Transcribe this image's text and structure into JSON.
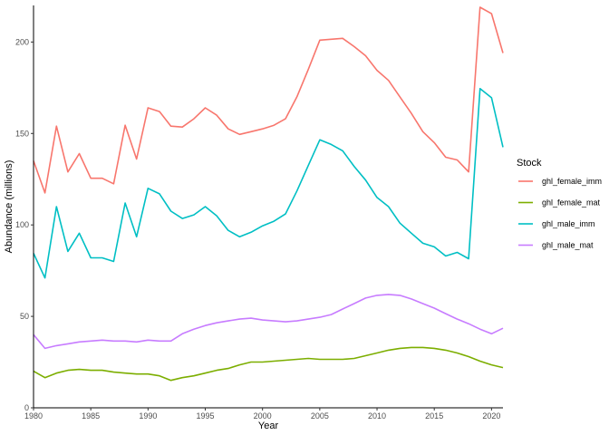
{
  "chart_data": {
    "type": "line",
    "title": "",
    "xlabel": "Year",
    "ylabel": "Abundance (millions)",
    "xlim": [
      1980,
      2021
    ],
    "ylim": [
      0,
      220
    ],
    "xticks": [
      1980,
      1985,
      1990,
      1995,
      2000,
      2005,
      2010,
      2015,
      2020
    ],
    "yticks": [
      0,
      50,
      100,
      150,
      200
    ],
    "grid": false,
    "legend": {
      "title": "Stock",
      "position": "right"
    },
    "x": [
      1980,
      1981,
      1982,
      1983,
      1984,
      1985,
      1986,
      1987,
      1988,
      1989,
      1990,
      1991,
      1992,
      1993,
      1994,
      1995,
      1996,
      1997,
      1998,
      1999,
      2000,
      2001,
      2002,
      2003,
      2004,
      2005,
      2006,
      2007,
      2008,
      2009,
      2010,
      2011,
      2012,
      2013,
      2014,
      2015,
      2016,
      2017,
      2018,
      2019,
      2020,
      2021
    ],
    "series": [
      {
        "name": "ghl_female_imm",
        "color": "#F8766D",
        "values": [
          135,
          117.5,
          154,
          129,
          139,
          125.5,
          125.5,
          122.5,
          154.5,
          136,
          164,
          162,
          154,
          153.5,
          158,
          164,
          160,
          152.5,
          149.5,
          151,
          152.5,
          154.5,
          158,
          170,
          185,
          201,
          201.5,
          202,
          197.5,
          192.5,
          184.5,
          179,
          170,
          161,
          151,
          145,
          137,
          135.5,
          129,
          219,
          215.5,
          194
        ]
      },
      {
        "name": "ghl_female_mat",
        "color": "#7CAE00",
        "values": [
          20,
          16.5,
          19,
          20.5,
          21,
          20.5,
          20.5,
          19.5,
          19,
          18.5,
          18.5,
          17.5,
          15,
          16.5,
          17.5,
          19,
          20.5,
          21.5,
          23.5,
          25,
          25,
          25.5,
          26,
          26.5,
          27,
          26.5,
          26.5,
          26.5,
          27,
          28.5,
          30,
          31.5,
          32.5,
          33,
          33,
          32.5,
          31.5,
          30,
          28,
          25.5,
          23.5,
          22
        ]
      },
      {
        "name": "ghl_male_imm",
        "color": "#00BFC4",
        "values": [
          84.5,
          71,
          110,
          85.5,
          95.5,
          82,
          82,
          80,
          112,
          93.5,
          120,
          117,
          107.5,
          103.5,
          105.5,
          110,
          105,
          97,
          93.5,
          96,
          99.5,
          102,
          106,
          118.5,
          132.5,
          146.5,
          144,
          140.5,
          132,
          124.5,
          115,
          110,
          101,
          95.5,
          90,
          88,
          83,
          85,
          81.5,
          174.5,
          169.5,
          142.5
        ]
      },
      {
        "name": "ghl_male_mat",
        "color": "#C77CFF",
        "values": [
          40,
          32.5,
          34,
          35,
          36,
          36.5,
          37,
          36.5,
          36.5,
          36,
          37,
          36.5,
          36.5,
          40.5,
          43,
          45,
          46.5,
          47.5,
          48.5,
          49,
          48,
          47.5,
          47,
          47.5,
          48.5,
          49.5,
          51,
          54,
          57,
          60,
          61.5,
          62,
          61.5,
          59.5,
          57,
          54.5,
          51.5,
          48.5,
          46,
          43,
          40.5,
          43.5
        ]
      }
    ]
  }
}
